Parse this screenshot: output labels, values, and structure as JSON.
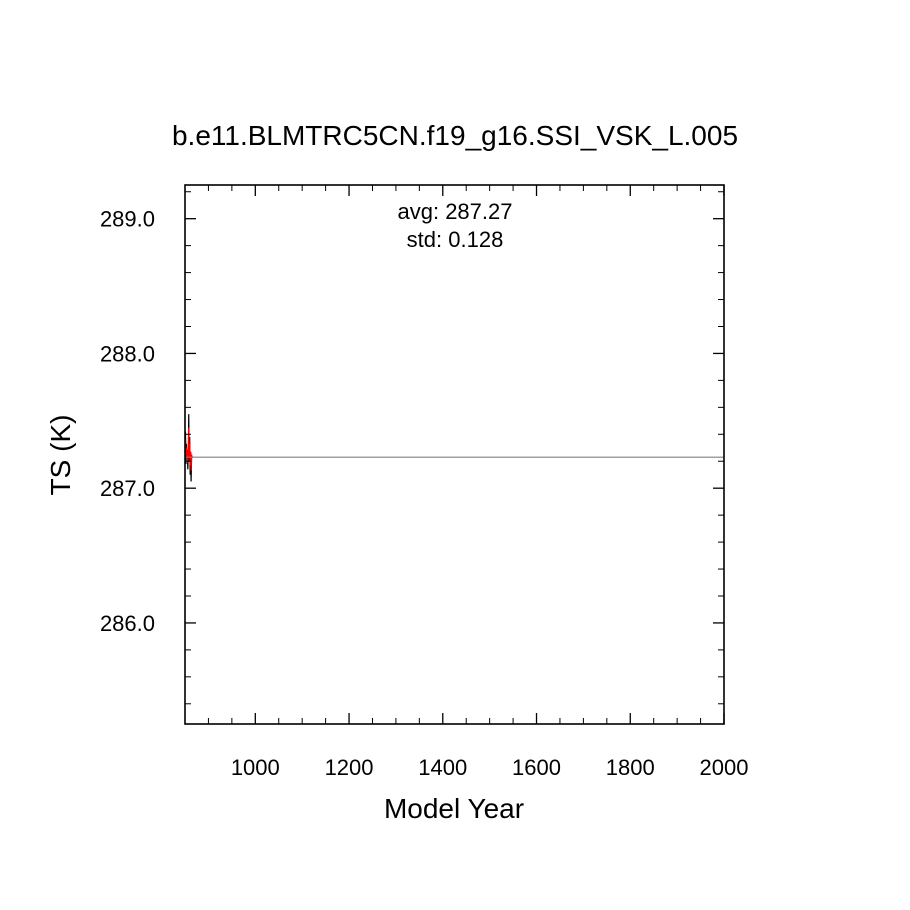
{
  "chart_data": {
    "type": "line",
    "title": "b.e11.BLMTRC5CN.f19_g16.SSI_VSK_L.005",
    "xlabel": "Model Year",
    "ylabel": "TS (K)",
    "xlim": [
      850,
      2000
    ],
    "ylim": [
      285.25,
      289.25
    ],
    "x_ticks": [
      1000,
      1200,
      1400,
      1600,
      1800,
      2000
    ],
    "x_tick_labels": [
      "1000",
      "1200",
      "1400",
      "1600",
      "1800",
      "2000"
    ],
    "y_ticks": [
      286.0,
      287.0,
      288.0,
      289.0
    ],
    "y_tick_labels": [
      "286.0",
      "287.0",
      "288.0",
      "289.0"
    ],
    "grid": false,
    "annotations": {
      "avg_text": "avg: 287.27",
      "std_text": "std:  0.128"
    },
    "series": [
      {
        "color": "#000000",
        "x": [
          850,
          851,
          852,
          853,
          854,
          855,
          856,
          857,
          858,
          859,
          860,
          861,
          862,
          863,
          864,
          865
        ],
        "y": [
          287.3,
          287.42,
          287.18,
          287.33,
          287.22,
          287.28,
          287.14,
          287.25,
          287.55,
          287.2,
          287.38,
          287.1,
          287.27,
          287.05,
          287.22,
          287.24
        ]
      },
      {
        "color": "#ff0000",
        "x": [
          850,
          851,
          852,
          853,
          854,
          855,
          856,
          857,
          858,
          859,
          860,
          861,
          862,
          863,
          864,
          865
        ],
        "y": [
          287.27,
          287.36,
          287.22,
          287.3,
          287.24,
          287.27,
          287.19,
          287.26,
          287.45,
          287.23,
          287.33,
          287.17,
          287.27,
          287.13,
          287.24,
          287.25
        ]
      },
      {
        "color": "#808080",
        "x": [
          850,
          2000
        ],
        "y": [
          287.23,
          287.23
        ]
      }
    ]
  }
}
